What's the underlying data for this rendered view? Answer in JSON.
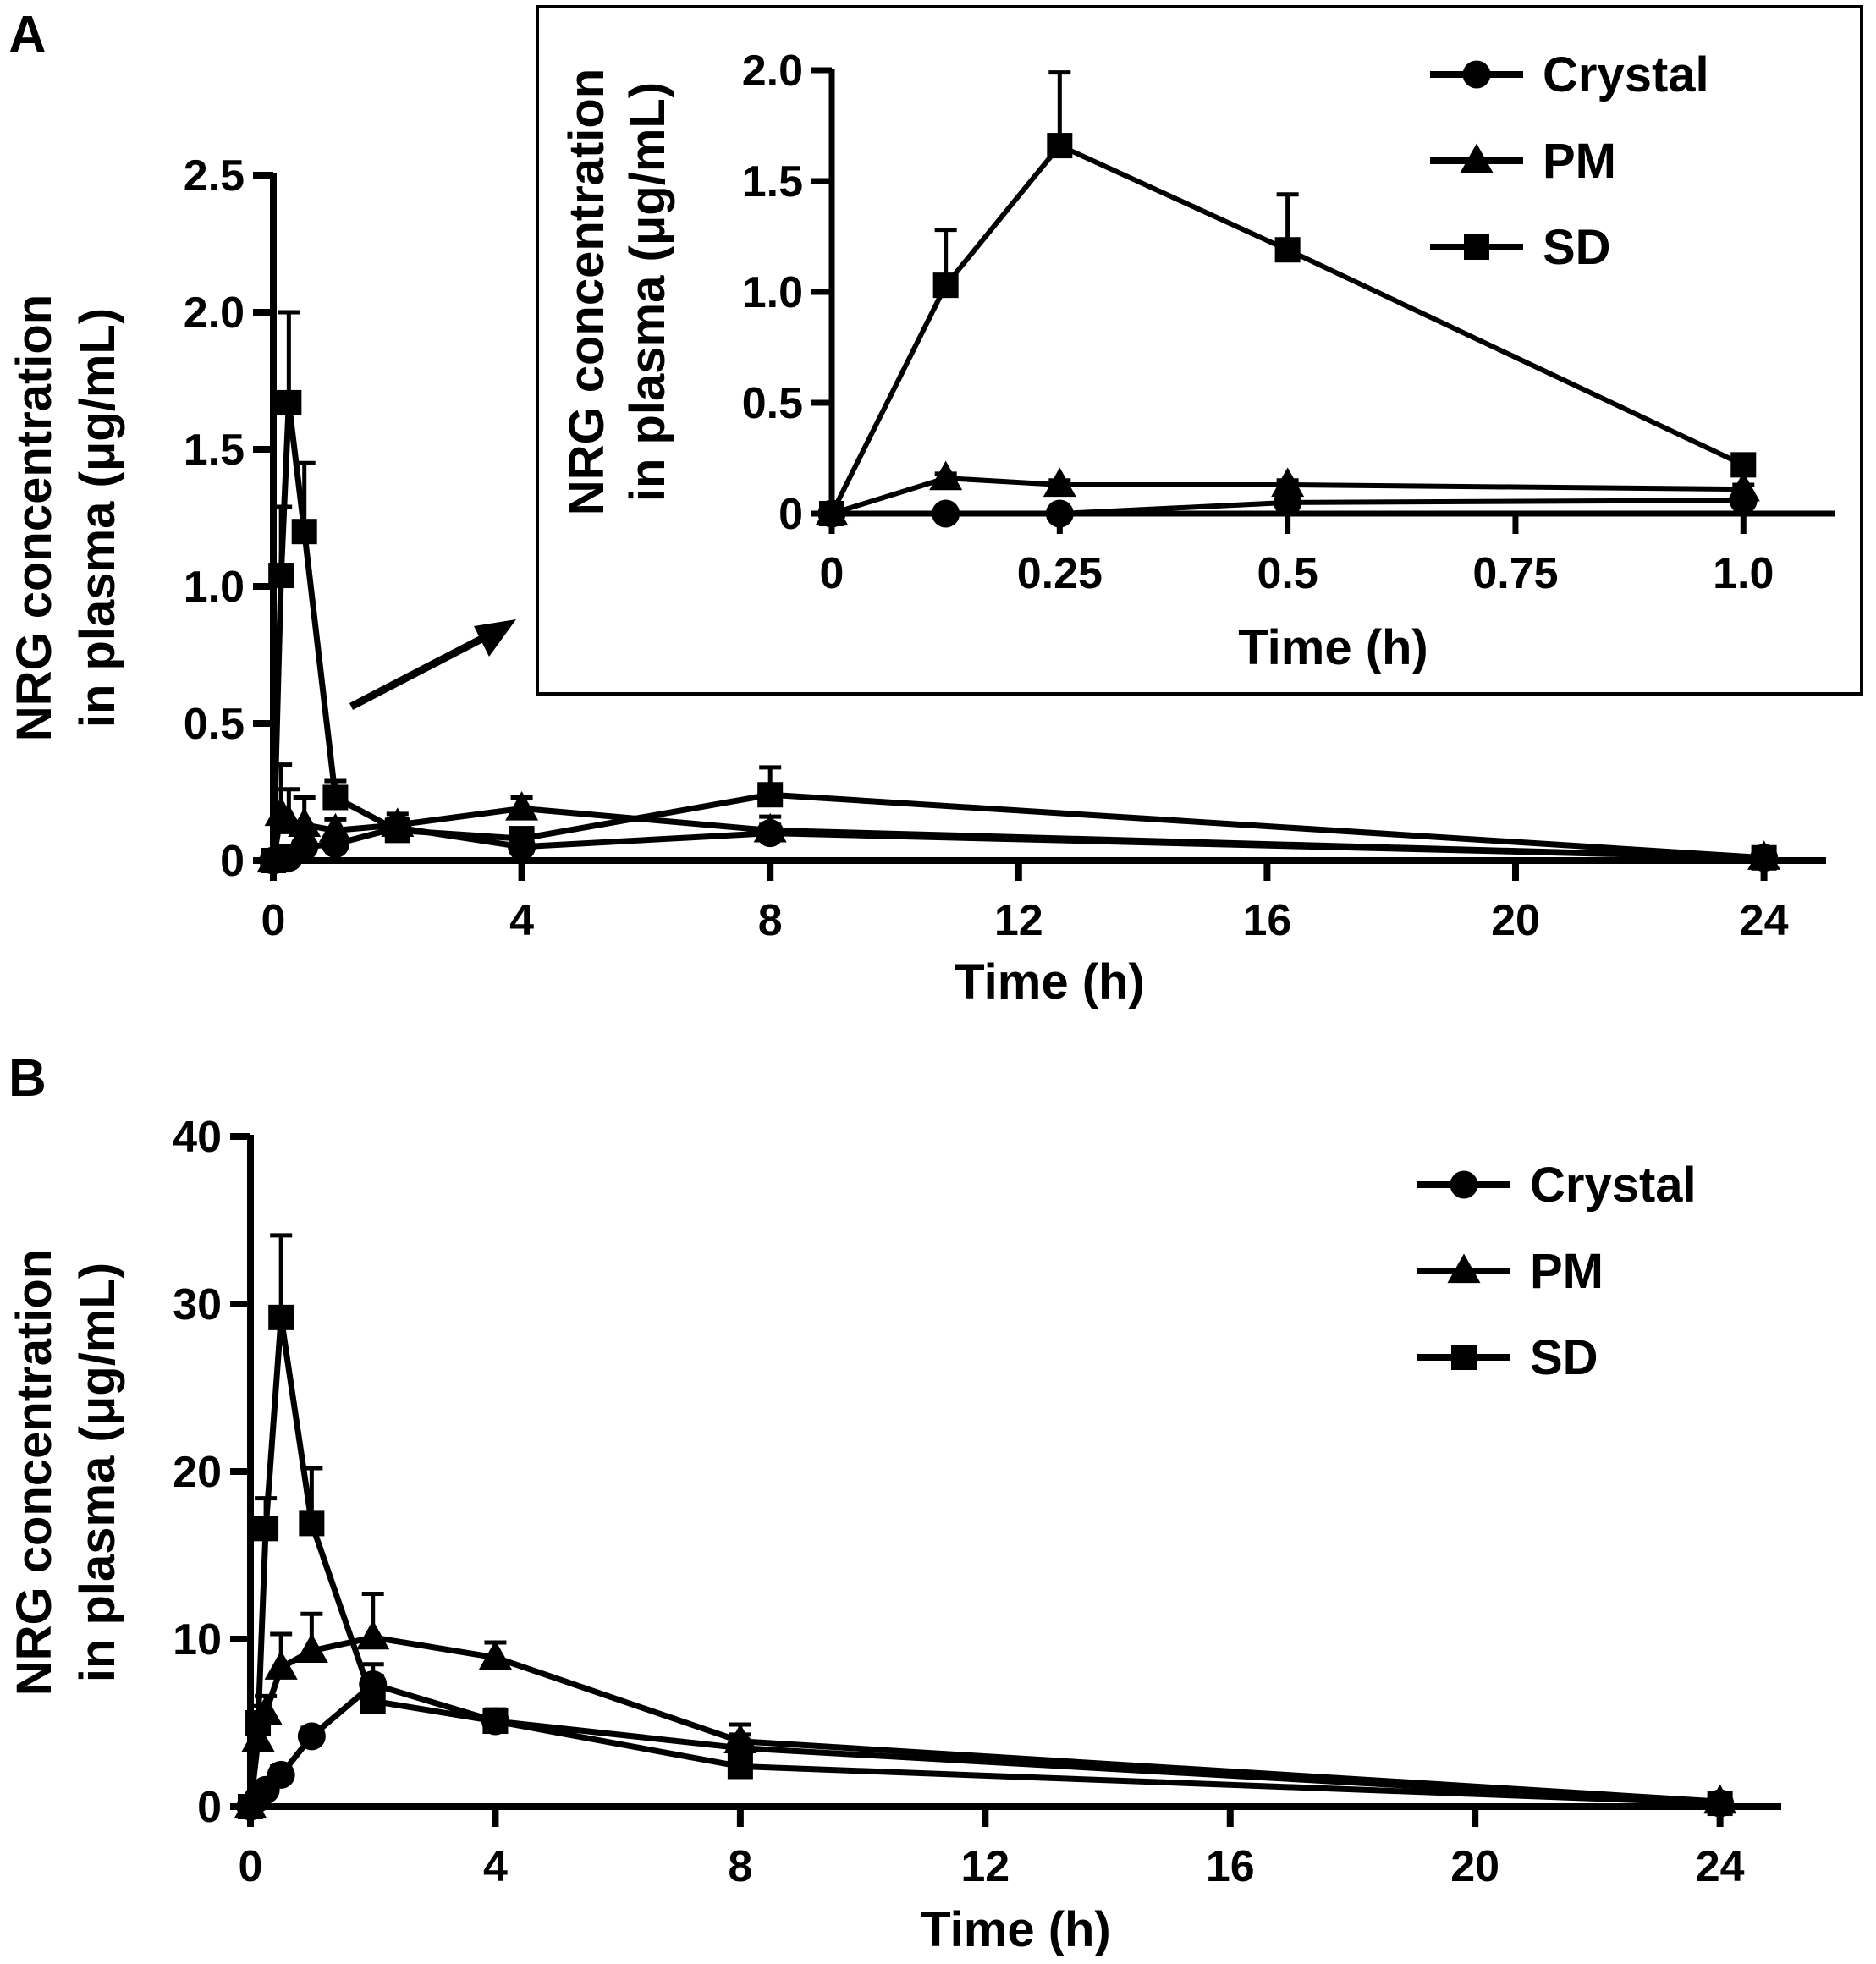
{
  "colors": {
    "ink": "#000000",
    "background": "#ffffff"
  },
  "chart_data": [
    {
      "id": "A-main",
      "type": "line",
      "panel_label": "A",
      "title": "",
      "xlabel": "Time (h)",
      "ylabel_lines": [
        "NRG concentration",
        "in plasma (μg/mL)"
      ],
      "xlim": [
        0,
        25
      ],
      "ylim": [
        0,
        2.5
      ],
      "xticks": [
        0,
        4,
        8,
        12,
        16,
        20,
        24
      ],
      "xtick_labels": [
        "0",
        "4",
        "8",
        "12",
        "16",
        "20",
        "24"
      ],
      "yticks": [
        0,
        0.5,
        1.0,
        1.5,
        2.0,
        2.5
      ],
      "ytick_labels": [
        "0",
        "0.5",
        "1.0",
        "1.5",
        "2.0",
        "2.5"
      ],
      "legend": "none",
      "series": [
        {
          "name": "Crystal",
          "marker": "circle",
          "x": [
            0,
            0.125,
            0.25,
            0.5,
            1,
            2,
            4,
            8,
            24
          ],
          "y": [
            0,
            0.01,
            0.01,
            0.05,
            0.06,
            0.12,
            0.05,
            0.1,
            0.01
          ],
          "err": [
            0,
            0.01,
            0.01,
            0.02,
            0.02,
            0.03,
            0.02,
            0.03,
            0.005
          ]
        },
        {
          "name": "PM",
          "marker": "triangle",
          "x": [
            0,
            0.125,
            0.25,
            0.5,
            1,
            2,
            4,
            8,
            24
          ],
          "y": [
            0,
            0.17,
            0.14,
            0.13,
            0.11,
            0.13,
            0.19,
            0.11,
            0.01
          ],
          "err": [
            0,
            0.18,
            0.12,
            0.1,
            0.04,
            0.04,
            0.04,
            0.05,
            0.005
          ]
        },
        {
          "name": "SD",
          "marker": "square",
          "x": [
            0,
            0.125,
            0.25,
            0.5,
            1,
            2,
            4,
            8,
            24
          ],
          "y": [
            0,
            1.04,
            1.67,
            1.2,
            0.23,
            0.11,
            0.08,
            0.24,
            0.01
          ],
          "err": [
            0,
            0.25,
            0.33,
            0.25,
            0.06,
            0.04,
            0.03,
            0.1,
            0.005
          ]
        }
      ]
    },
    {
      "id": "A-inset",
      "type": "line",
      "title": "",
      "xlabel": "Time (h)",
      "ylabel_lines": [
        "NRG concentration",
        "in plasma (μg/mL)"
      ],
      "xlim": [
        0,
        1.1
      ],
      "ylim": [
        0,
        2.0
      ],
      "xticks": [
        0,
        0.25,
        0.5,
        0.75,
        1.0
      ],
      "xtick_labels": [
        "0",
        "0.25",
        "0.5",
        "0.75",
        "1.0"
      ],
      "yticks": [
        0,
        0.5,
        1.0,
        1.5,
        2.0
      ],
      "ytick_labels": [
        "0",
        "0.5",
        "1.0",
        "1.5",
        "2.0"
      ],
      "legend": "top-right",
      "series": [
        {
          "name": "Crystal",
          "marker": "circle",
          "x": [
            0,
            0.125,
            0.25,
            0.5,
            1.0
          ],
          "y": [
            0,
            0.0,
            0.0,
            0.05,
            0.06
          ],
          "err": [
            0,
            0,
            0,
            0,
            0
          ]
        },
        {
          "name": "PM",
          "marker": "triangle",
          "x": [
            0,
            0.125,
            0.25,
            0.5,
            1.0
          ],
          "y": [
            0,
            0.16,
            0.13,
            0.13,
            0.11
          ],
          "err": [
            0,
            0.02,
            0.02,
            0.02,
            0.02
          ]
        },
        {
          "name": "SD",
          "marker": "square",
          "x": [
            0,
            0.125,
            0.25,
            0.5,
            1.0
          ],
          "y": [
            0,
            1.03,
            1.66,
            1.19,
            0.22
          ],
          "err": [
            0,
            0.25,
            0.33,
            0.25,
            0.04
          ]
        }
      ]
    },
    {
      "id": "B",
      "type": "line",
      "panel_label": "B",
      "title": "",
      "xlabel": "Time (h)",
      "ylabel_lines": [
        "NRG concentration",
        "in plasma (μg/mL)"
      ],
      "xlim": [
        0,
        25
      ],
      "ylim": [
        0,
        40
      ],
      "xticks": [
        0,
        4,
        8,
        12,
        16,
        20,
        24
      ],
      "xtick_labels": [
        "0",
        "4",
        "8",
        "12",
        "16",
        "20",
        "24"
      ],
      "yticks": [
        0,
        10,
        20,
        30,
        40
      ],
      "ytick_labels": [
        "0",
        "10",
        "20",
        "30",
        "40"
      ],
      "legend": "top-right",
      "series": [
        {
          "name": "Crystal",
          "marker": "circle",
          "x": [
            0,
            0.125,
            0.25,
            0.5,
            1,
            2,
            4,
            8,
            24
          ],
          "y": [
            0,
            0.5,
            1.0,
            1.9,
            4.2,
            7.3,
            5.1,
            3.5,
            0.2
          ],
          "err": [
            0,
            0.3,
            0.4,
            0.5,
            0.5,
            1.2,
            0.7,
            0.8,
            0.1
          ]
        },
        {
          "name": "PM",
          "marker": "triangle",
          "x": [
            0,
            0.125,
            0.25,
            0.5,
            1,
            2,
            4,
            8,
            24
          ],
          "y": [
            0,
            4.0,
            5.6,
            8.3,
            9.3,
            10.1,
            8.9,
            3.9,
            0.3
          ],
          "err": [
            0,
            0.8,
            1.0,
            2.0,
            2.2,
            2.6,
            0.9,
            1.0,
            0.1
          ]
        },
        {
          "name": "SD",
          "marker": "square",
          "x": [
            0,
            0.125,
            0.25,
            0.5,
            1,
            2,
            4,
            8,
            24
          ],
          "y": [
            0,
            5.0,
            16.6,
            29.2,
            16.9,
            6.3,
            5.1,
            2.4,
            0.2
          ],
          "err": [
            0,
            1.0,
            1.8,
            4.9,
            3.3,
            1.5,
            0.6,
            0.6,
            0.1
          ]
        }
      ]
    }
  ]
}
